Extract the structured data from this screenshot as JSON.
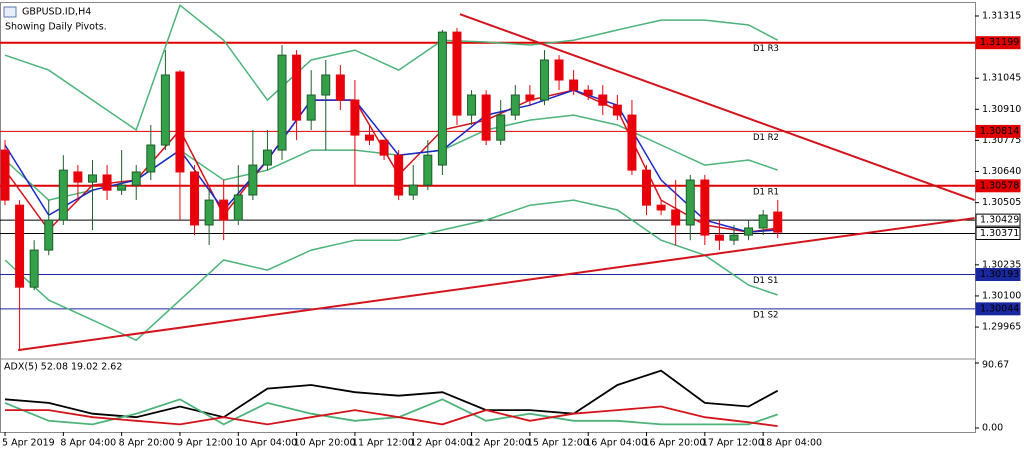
{
  "header": {
    "symbol": "GBPUSD.ID,H4",
    "note": "Showing Daily Pivots."
  },
  "chart_data": {
    "type": "candlestick",
    "categories": [
      "5 Apr 2019",
      null,
      null,
      null,
      "8 Apr 04:00",
      null,
      null,
      null,
      "8 Apr 20:00",
      null,
      null,
      null,
      "9 Apr 12:00",
      null,
      null,
      null,
      "10 Apr 04:00",
      null,
      null,
      null,
      "10 Apr 20:00",
      null,
      null,
      null,
      "11 Apr 12:00",
      null,
      null,
      null,
      "12 Apr 04:00",
      null,
      null,
      null,
      "12 Apr 20:00",
      null,
      null,
      null,
      "15 Apr 12:00",
      null,
      null,
      null,
      "16 Apr 04:00",
      null,
      null,
      null,
      "16 Apr 20:00",
      null,
      null,
      null,
      "17 Apr 12:00",
      null,
      null,
      null,
      "18 Apr 04:00",
      null
    ],
    "open": [
      1.30733,
      1.30494,
      1.30138,
      1.30299,
      1.30429,
      1.30638,
      1.30594,
      1.30625,
      1.30559,
      1.30581,
      1.30638,
      1.30755,
      1.31072,
      1.30638,
      1.30408,
      1.30516,
      1.30429,
      1.30538,
      1.30668,
      1.30733,
      1.31145,
      1.30863,
      1.30972,
      1.31059,
      1.3095,
      1.30798,
      1.30776,
      1.30711,
      1.30538,
      1.30581,
      1.30668,
      1.31245,
      1.30885,
      1.30972,
      1.30776,
      1.30885,
      1.30972,
      1.3095,
      1.31124,
      1.31037,
      1.30993,
      1.30972,
      1.30928,
      1.30885,
      1.30646,
      1.30494,
      1.30473,
      1.30408,
      1.30603,
      1.30364,
      1.30342,
      1.30364,
      1.30395,
      1.30464
    ],
    "high": [
      1.30776,
      1.30516,
      1.30342,
      1.30516,
      1.30711,
      1.30668,
      1.3069,
      1.30668,
      1.30733,
      1.30668,
      1.30842,
      1.31167,
      1.3108,
      1.30668,
      1.30559,
      1.30603,
      1.30668,
      1.3082,
      1.3082,
      1.31189,
      1.31167,
      1.3108,
      1.31124,
      1.31102,
      1.31037,
      1.30842,
      1.30776,
      1.30733,
      1.30668,
      1.30776,
      1.31254,
      1.31263,
      1.30993,
      1.30993,
      1.3095,
      1.31015,
      1.31015,
      1.31167,
      1.31145,
      1.3108,
      1.31015,
      1.31015,
      1.30972,
      1.3095,
      1.30668,
      1.30516,
      1.30603,
      1.30625,
      1.30625,
      1.30429,
      1.30408,
      1.30429,
      1.30473,
      1.30516
    ],
    "low": [
      1.30494,
      1.29865,
      1.30125,
      1.30277,
      1.30408,
      1.30516,
      1.30386,
      1.30516,
      1.30538,
      1.30516,
      1.30603,
      1.30733,
      1.30429,
      1.30364,
      1.30321,
      1.30342,
      1.30408,
      1.30516,
      1.30646,
      1.3069,
      1.30776,
      1.3082,
      1.30733,
      1.30907,
      1.30581,
      1.30755,
      1.3069,
      1.30516,
      1.30516,
      1.30559,
      1.30625,
      1.30842,
      1.30842,
      1.30755,
      1.30755,
      1.30863,
      1.30928,
      1.30928,
      1.30993,
      1.30972,
      1.3095,
      1.30885,
      1.30863,
      1.30625,
      1.30451,
      1.30451,
      1.30321,
      1.30342,
      1.30321,
      1.30299,
      1.30321,
      1.30342,
      1.30364,
      1.30351
    ],
    "close": [
      1.30516,
      1.30138,
      1.30299,
      1.30429,
      1.30646,
      1.30594,
      1.30625,
      1.30559,
      1.30581,
      1.30638,
      1.30755,
      1.31059,
      1.30638,
      1.30408,
      1.30516,
      1.30429,
      1.30538,
      1.30668,
      1.30733,
      1.31145,
      1.30863,
      1.30972,
      1.31059,
      1.3095,
      1.30798,
      1.30776,
      1.30711,
      1.30538,
      1.30581,
      1.30711,
      1.31245,
      1.30885,
      1.30972,
      1.30776,
      1.30885,
      1.30972,
      1.3095,
      1.31124,
      1.31037,
      1.30993,
      1.30972,
      1.30928,
      1.30885,
      1.30646,
      1.30494,
      1.30473,
      1.30408,
      1.30603,
      1.30364,
      1.30342,
      1.30364,
      1.30395,
      1.30451,
      1.30377
    ],
    "up_color": "#35a04a",
    "down_color": "#e8000b",
    "ylim": [
      1.29835,
      1.31367
    ],
    "yticks": [
      1.31315,
      1.31045,
      {
        "value": 1.3091,
        "label": "1.30910"
      },
      1.30775,
      {
        "value": 1.3064,
        "label": "1.30640"
      },
      1.30505,
      1.30235,
      {
        "value": 1.301,
        "label": "1.30100"
      },
      1.29965
    ],
    "overlays": {
      "x": [
        0,
        3,
        6,
        9,
        12,
        15,
        18,
        21,
        24,
        27,
        30,
        33,
        36,
        39,
        42,
        45,
        48,
        51,
        53
      ],
      "series": [
        {
          "color": "#4db37a",
          "values": [
            1.31145,
            1.3108,
            1.3095,
            1.3082,
            1.31362,
            1.3121,
            1.3095,
            1.31124,
            1.31167,
            1.3108,
            1.3121,
            1.31202,
            1.31189,
            1.3121,
            1.31254,
            1.31297,
            1.31297,
            1.31276,
            1.3121
          ]
        },
        {
          "color": "#4db37a",
          "values": [
            1.3069,
            1.30516,
            1.30559,
            1.30603,
            1.30733,
            1.30603,
            1.30646,
            1.30733,
            1.30733,
            1.30711,
            1.30733,
            1.3082,
            1.30863,
            1.30885,
            1.30842,
            1.30755,
            1.30668,
            1.3069,
            1.30646
          ]
        },
        {
          "color": "#4db37a",
          "values": [
            1.30256,
            1.30082,
            1.29995,
            1.29908,
            1.30082,
            1.30256,
            1.30212,
            1.30299,
            1.30342,
            1.30342,
            1.30386,
            1.30429,
            1.30494,
            1.30516,
            1.30473,
            1.30342,
            1.30277,
            1.30147,
            1.30104
          ]
        },
        {
          "color": "#d4141c",
          "values": [
            1.30646,
            1.30386,
            1.30581,
            1.30603,
            1.3082,
            1.30451,
            1.3069,
            1.3095,
            1.3095,
            1.30625,
            1.3082,
            1.30863,
            1.3095,
            1.30993,
            1.30907,
            1.30516,
            1.30408,
            1.30377,
            1.30395
          ]
        },
        {
          "color": "#1a28c8",
          "values": [
            1.30755,
            1.30451,
            1.30559,
            1.30603,
            1.30733,
            1.30473,
            1.3069,
            1.3095,
            1.3095,
            1.30711,
            1.30733,
            1.30885,
            1.30928,
            1.30993,
            1.30928,
            1.30603,
            1.30429,
            1.30377,
            1.30386
          ]
        }
      ]
    },
    "trendlines": [
      {
        "color": "#d4141c",
        "x": [
          31.2,
          66.5
        ],
        "y": [
          1.31323,
          1.30516
        ]
      },
      {
        "color": "#d4141c",
        "x": [
          0.9,
          66.5
        ],
        "y": [
          1.29865,
          1.30438
        ]
      }
    ],
    "levels": [
      {
        "label": "D1 R3",
        "value": 1.31199,
        "color": "#e00000",
        "width": 2
      },
      {
        "label": "D1 R2",
        "value": 1.30814,
        "color": "#e00000",
        "width": 1
      },
      {
        "label": "D1 R1",
        "value": 1.30578,
        "color": "#e00000",
        "width": 2
      },
      {
        "value": 1.30429,
        "color": "#000000",
        "width": 1
      },
      {
        "value": 1.30371,
        "color": "#000000",
        "width": 1
      },
      {
        "label": "D1 S1",
        "value": 1.30193,
        "color": "#1a28a0",
        "width": 1
      },
      {
        "label": "D1 S2",
        "value": 1.30044,
        "color": "#1a28a0",
        "width": 1
      }
    ]
  },
  "adx_panel": {
    "label": "ADX(5) 52.08 19.02 2.62",
    "ylim": [
      0,
      90.67
    ],
    "yticks": [
      90.67,
      {
        "value": 0,
        "label": "0.00"
      }
    ],
    "x": [
      0,
      3,
      6,
      9,
      12,
      15,
      18,
      21,
      24,
      27,
      30,
      33,
      36,
      39,
      42,
      45,
      48,
      51,
      53
    ],
    "series": [
      {
        "color": "#000000",
        "values": [
          40,
          35,
          20,
          15,
          30,
          15,
          55,
          60,
          50,
          45,
          50,
          25,
          25,
          20,
          60,
          80,
          35,
          30,
          52.08
        ]
      },
      {
        "color": "#4db37a",
        "values": [
          35,
          10,
          5,
          20,
          40,
          5,
          35,
          20,
          10,
          15,
          40,
          10,
          20,
          10,
          10,
          5,
          5,
          5,
          19.02
        ]
      },
      {
        "color": "#d4141c",
        "values": [
          25,
          25,
          15,
          10,
          5,
          15,
          5,
          15,
          25,
          15,
          5,
          25,
          10,
          20,
          25,
          30,
          15,
          8,
          2.62
        ]
      }
    ]
  }
}
